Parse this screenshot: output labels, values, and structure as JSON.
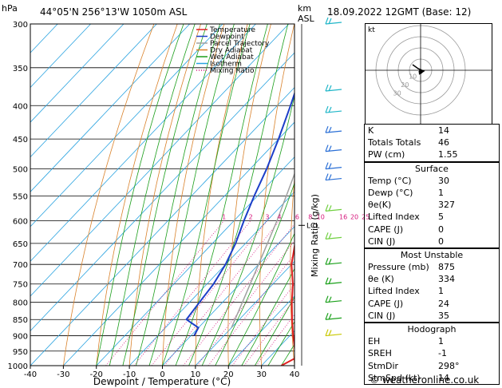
{
  "header": {
    "hpa_label": "hPa",
    "location": "44°05'N  256°13'W  1050m  ASL",
    "km_label": "km",
    "asl_label": "ASL",
    "datetime": "18.09.2022  12GMT  (Base: 12)"
  },
  "credit": "© weatheronline.co.uk",
  "hodograph": {
    "kt_label": "kt",
    "ring_labels": [
      "10",
      "20",
      "30"
    ]
  },
  "indices": {
    "basic": [
      {
        "label": "K",
        "value": "14"
      },
      {
        "label": "Totals Totals",
        "value": "46"
      },
      {
        "label": "PW (cm)",
        "value": "1.55"
      }
    ],
    "surface_title": "Surface",
    "surface": [
      {
        "label": "Temp (°C)",
        "value": "30"
      },
      {
        "label": "Dewp (°C)",
        "value": "1"
      },
      {
        "label": "θe(K)",
        "value": "327"
      },
      {
        "label": "Lifted Index",
        "value": "5"
      },
      {
        "label": "CAPE (J)",
        "value": "0"
      },
      {
        "label": "CIN (J)",
        "value": "0"
      }
    ],
    "unstable_title": "Most Unstable",
    "unstable": [
      {
        "label": "Pressure (mb)",
        "value": "875"
      },
      {
        "label": "θe (K)",
        "value": "334"
      },
      {
        "label": "Lifted Index",
        "value": "1"
      },
      {
        "label": "CAPE (J)",
        "value": "24"
      },
      {
        "label": "CIN (J)",
        "value": "35"
      }
    ],
    "hodo_title": "Hodograph",
    "hodo": [
      {
        "label": "EH",
        "value": "1"
      },
      {
        "label": "SREH",
        "value": "-1"
      },
      {
        "label": "StmDir",
        "value": "298°"
      },
      {
        "label": "StmSpd (kt)",
        "value": "14"
      }
    ]
  },
  "chart_data": {
    "type": "line",
    "subtype": "skew-T log-p",
    "xlabel": "Dewpoint / Temperature (°C)",
    "ylabel": "Mixing Ratio (g/kg)",
    "xlim": [
      -40,
      40
    ],
    "ylim": [
      1000,
      300
    ],
    "y_scale": "log",
    "x_ticks": [
      -40,
      -30,
      -20,
      -10,
      0,
      10,
      20,
      30,
      40
    ],
    "pressure_levels": [
      300,
      350,
      400,
      450,
      500,
      550,
      600,
      650,
      700,
      750,
      800,
      850,
      900,
      950,
      1000
    ],
    "km_ticks": [
      {
        "p": 610,
        "label": "LCL"
      }
    ],
    "legend": [
      "Temperature",
      "Dewpoint",
      "Parcel Trajectory",
      "Dry Adiabat",
      "Wet Adiabat",
      "Isotherm",
      "Mixing Ratio"
    ],
    "legend_position": "top-left",
    "mixing_ratio_labels": [
      "1",
      "2",
      "3",
      "4",
      "6",
      "8",
      "10",
      "16",
      "20",
      "25"
    ],
    "colors": {
      "temperature": "#e02020",
      "dewpoint": "#1c3ec8",
      "parcel": "#a0a0a0",
      "dry_adiabat": "#d9822b",
      "wet_adiabat": "#1a9e1a",
      "isotherm": "#2aa3e0",
      "mixing_ratio": "#d6157b"
    },
    "series": [
      {
        "name": "Temperature",
        "points": [
          [
            1000,
            36
          ],
          [
            975,
            38
          ],
          [
            950,
            36
          ],
          [
            900,
            31
          ],
          [
            850,
            26
          ],
          [
            800,
            21
          ],
          [
            750,
            16
          ],
          [
            700,
            10
          ],
          [
            650,
            5
          ],
          [
            600,
            0
          ],
          [
            550,
            -5
          ],
          [
            500,
            -11
          ],
          [
            450,
            -17
          ],
          [
            400,
            -24
          ],
          [
            350,
            -32
          ],
          [
            300,
            -41
          ]
        ]
      },
      {
        "name": "Dewpoint",
        "points": [
          [
            900,
            1
          ],
          [
            875,
            0
          ],
          [
            850,
            -6
          ],
          [
            800,
            -7
          ],
          [
            750,
            -8
          ],
          [
            700,
            -10
          ],
          [
            650,
            -13
          ],
          [
            600,
            -17
          ],
          [
            550,
            -21
          ],
          [
            500,
            -25
          ],
          [
            450,
            -30
          ],
          [
            400,
            -36
          ],
          [
            350,
            -43
          ],
          [
            300,
            -50
          ]
        ]
      },
      {
        "name": "Parcel Trajectory",
        "points": [
          [
            875,
            10
          ],
          [
            800,
            6
          ],
          [
            700,
            0
          ],
          [
            600,
            -7
          ],
          [
            500,
            -16
          ],
          [
            400,
            -27
          ],
          [
            300,
            -44
          ]
        ]
      }
    ],
    "wind_barbs_levels": [
      300,
      380,
      410,
      440,
      470,
      500,
      520,
      580,
      640,
      700,
      750,
      800,
      850,
      900
    ]
  }
}
